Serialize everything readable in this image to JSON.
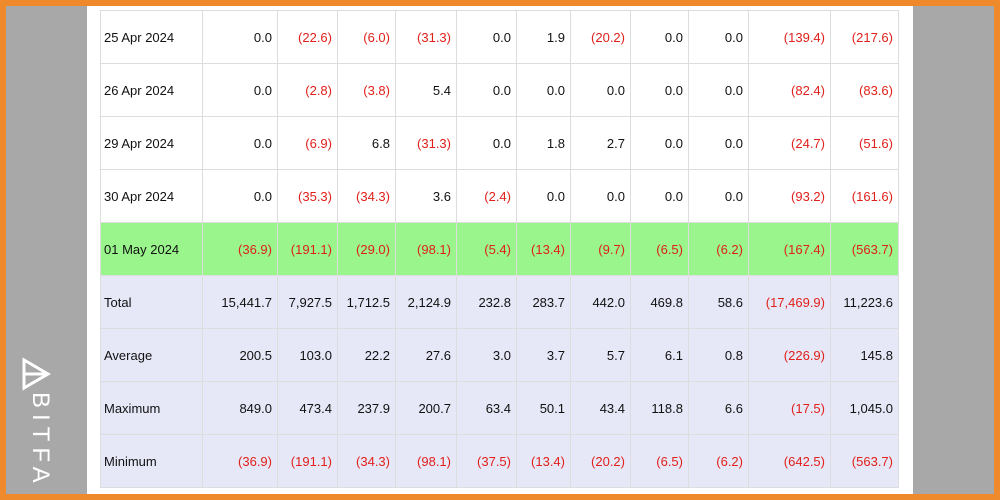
{
  "watermark": "BITFA",
  "table": {
    "rows": [
      [
        "25 Apr 2024",
        "0.0",
        "(22.6)",
        "(6.0)",
        "(31.3)",
        "0.0",
        "1.9",
        "(20.2)",
        "0.0",
        "0.0",
        "(139.4)",
        "(217.6)"
      ],
      [
        "26 Apr 2024",
        "0.0",
        "(2.8)",
        "(3.8)",
        "5.4",
        "0.0",
        "0.0",
        "0.0",
        "0.0",
        "0.0",
        "(82.4)",
        "(83.6)"
      ],
      [
        "29 Apr 2024",
        "0.0",
        "(6.9)",
        "6.8",
        "(31.3)",
        "0.0",
        "1.8",
        "2.7",
        "0.0",
        "0.0",
        "(24.7)",
        "(51.6)"
      ],
      [
        "30 Apr 2024",
        "0.0",
        "(35.3)",
        "(34.3)",
        "3.6",
        "(2.4)",
        "0.0",
        "0.0",
        "0.0",
        "0.0",
        "(93.2)",
        "(161.6)"
      ],
      [
        "01 May 2024",
        "(36.9)",
        "(191.1)",
        "(29.0)",
        "(98.1)",
        "(5.4)",
        "(13.4)",
        "(9.7)",
        "(6.5)",
        "(6.2)",
        "(167.4)",
        "(563.7)"
      ],
      [
        "Total",
        "15,441.7",
        "7,927.5",
        "1,712.5",
        "2,124.9",
        "232.8",
        "283.7",
        "442.0",
        "469.8",
        "58.6",
        "(17,469.9)",
        "11,223.6"
      ],
      [
        "Average",
        "200.5",
        "103.0",
        "22.2",
        "27.6",
        "3.0",
        "3.7",
        "5.7",
        "6.1",
        "0.8",
        "(226.9)",
        "145.8"
      ],
      [
        "Maximum",
        "849.0",
        "473.4",
        "237.9",
        "200.7",
        "63.4",
        "50.1",
        "43.4",
        "118.8",
        "6.6",
        "(17.5)",
        "1,045.0"
      ],
      [
        "Minimum",
        "(36.9)",
        "(191.1)",
        "(34.3)",
        "(98.1)",
        "(37.5)",
        "(13.4)",
        "(20.2)",
        "(6.5)",
        "(6.2)",
        "(642.5)",
        "(563.7)"
      ]
    ]
  }
}
